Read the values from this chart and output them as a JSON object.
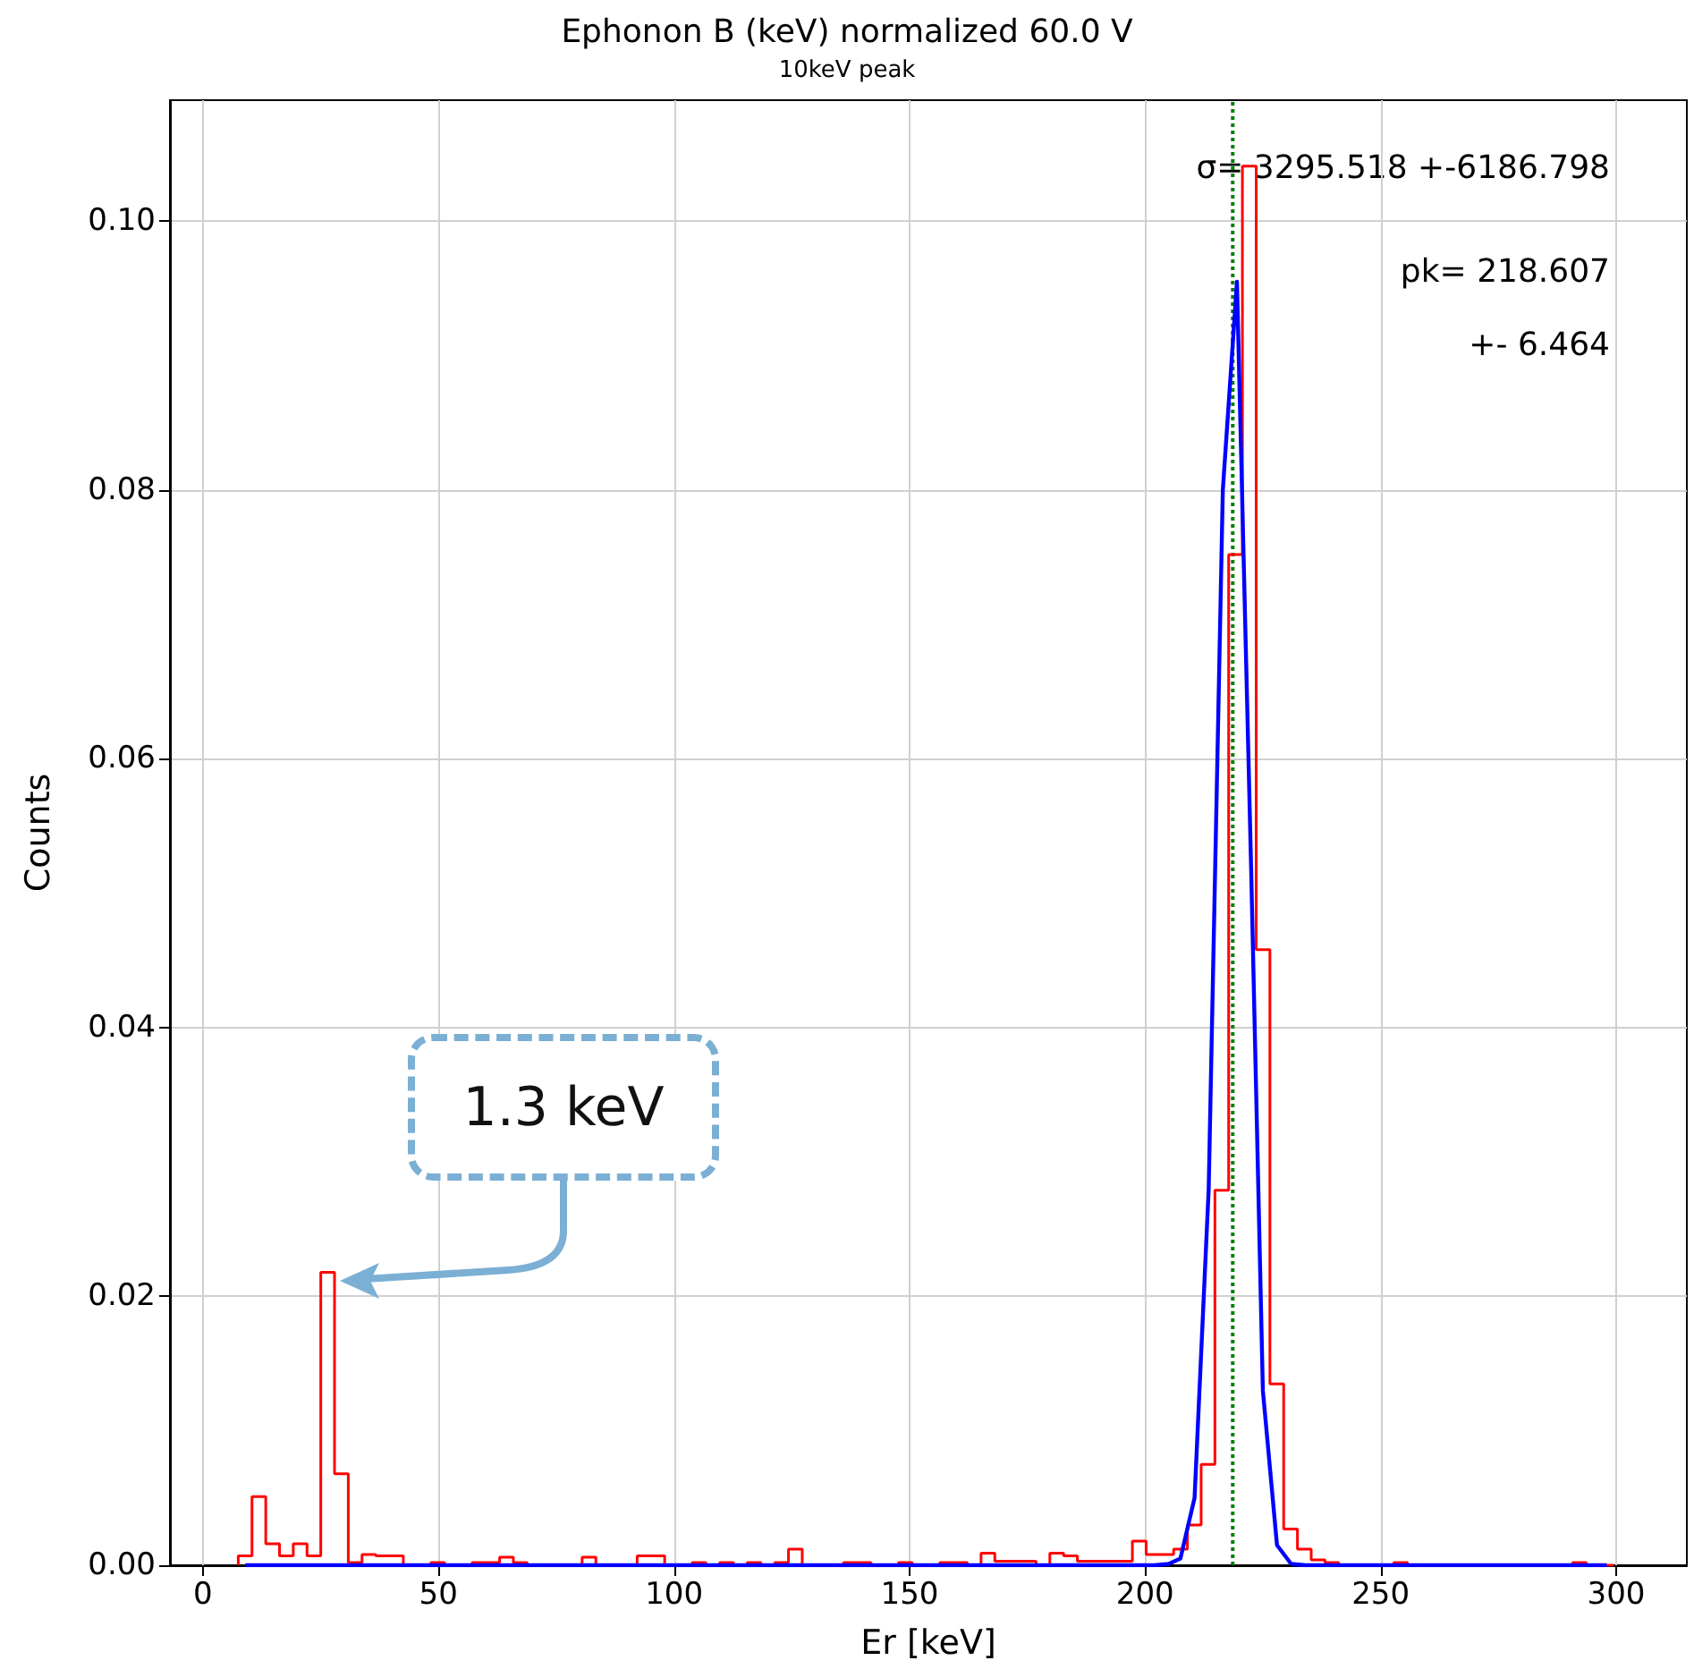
{
  "chart_data": {
    "type": "histogram",
    "title": "Ephonon B (keV) normalized 60.0 V",
    "subtitle": "10keV peak",
    "xlabel": "Er [keV]",
    "ylabel": "Counts",
    "bins": [
      7.5,
      10.42,
      13.34,
      16.26,
      19.18,
      22.1,
      25.02,
      27.94,
      30.86,
      33.78,
      36.7,
      39.62,
      42.54,
      45.46,
      48.38,
      51.3,
      54.22,
      57.14,
      60.06,
      62.98,
      65.9,
      68.82,
      71.74,
      74.66,
      77.58,
      80.5,
      83.42,
      86.34,
      89.26,
      92.18,
      95.1,
      98.02,
      100.94,
      103.86,
      106.78,
      109.7,
      112.62,
      115.54,
      118.46,
      121.38,
      124.3,
      127.22,
      130.14,
      133.06,
      135.98,
      138.9,
      141.82,
      144.74,
      147.66,
      150.58,
      153.5,
      156.42,
      159.34,
      162.26,
      165.18,
      168.1,
      171.02,
      173.94,
      176.86,
      179.78,
      182.7,
      185.62,
      188.54,
      191.46,
      194.38,
      197.3,
      200.22,
      203.14,
      206.06,
      208.98,
      211.9,
      214.82,
      217.74,
      220.66,
      223.58,
      226.5,
      229.42,
      232.34,
      235.26,
      238.18,
      241.1,
      244.02,
      246.94,
      249.86,
      252.78,
      255.7,
      258.62,
      261.54,
      264.46,
      267.38,
      270.3,
      273.22,
      276.14,
      279.06,
      281.98,
      284.9,
      287.82,
      290.74,
      293.66,
      296.58,
      299.5
    ],
    "series": [
      {
        "color": "#ff0000",
        "values": [
          0.0007,
          0.0051,
          0.0016,
          0.0007,
          0.0016,
          0.0007,
          0.0218,
          0.0068,
          0.0002,
          0.0008,
          0.0007,
          0.0007,
          0,
          0,
          0.0002,
          0,
          0,
          0.0002,
          0.0002,
          0.0006,
          0.0002,
          0,
          0,
          0,
          0,
          0.0006,
          0,
          0,
          0,
          0.0007,
          0.0007,
          0,
          0,
          0.0002,
          0,
          0.0002,
          0,
          0.0002,
          0,
          0.0002,
          0.0012,
          0,
          0,
          0,
          0.0002,
          0.0002,
          0,
          0,
          0.0002,
          0,
          0,
          0.0002,
          0.0002,
          0,
          0.0009,
          0.0003,
          0.0003,
          0.0003,
          0,
          0.0009,
          0.0007,
          0.0003,
          0.0003,
          0.0003,
          0.0003,
          0.0018,
          0.0008,
          0.0008,
          0.0012,
          0.003,
          0.0075,
          0.0279,
          0.0752,
          0.1041,
          0.0458,
          0.0135,
          0.0027,
          0.0012,
          0.0004,
          0.0002,
          0,
          0,
          0,
          0,
          0.0002,
          0,
          0,
          0,
          0,
          0,
          0,
          0,
          0,
          0,
          0,
          0,
          0,
          0.0002,
          0,
          0
        ]
      },
      {
        "type": "line",
        "color": "#0000ff",
        "x": [
          9,
          202,
          205,
          207.5,
          210.5,
          213.5,
          216.5,
          219.5,
          222.5,
          225,
          228,
          231,
          234,
          298
        ],
        "values": [
          0,
          0,
          0.0001,
          0.0005,
          0.005,
          0.028,
          0.08,
          0.0955,
          0.052,
          0.013,
          0.0015,
          0.0001,
          0,
          0
        ]
      }
    ],
    "xlim": [
      -7,
      315
    ],
    "xticks": [
      0,
      50,
      100,
      150,
      200,
      250,
      300
    ],
    "ylim": [
      0,
      0.109
    ],
    "yticks": [
      {
        "value": 0,
        "label": "0.00"
      },
      {
        "value": 0.02,
        "label": "0.02"
      },
      {
        "value": 0.04,
        "label": "0.04"
      },
      {
        "value": 0.06,
        "label": "0.06"
      },
      {
        "value": 0.08,
        "label": "0.08"
      },
      {
        "value": 0.1,
        "label": "0.10"
      }
    ],
    "grid": true,
    "marker": "none",
    "ref_lines": [
      {
        "axis": "x",
        "value": 218.607,
        "color": "#008000",
        "line_style": "dotted"
      }
    ],
    "annotations": [
      "σ= 3295.518 +-6186.798",
      "pk= 218.607",
      "+- 6.464",
      "1.3 keV"
    ]
  }
}
